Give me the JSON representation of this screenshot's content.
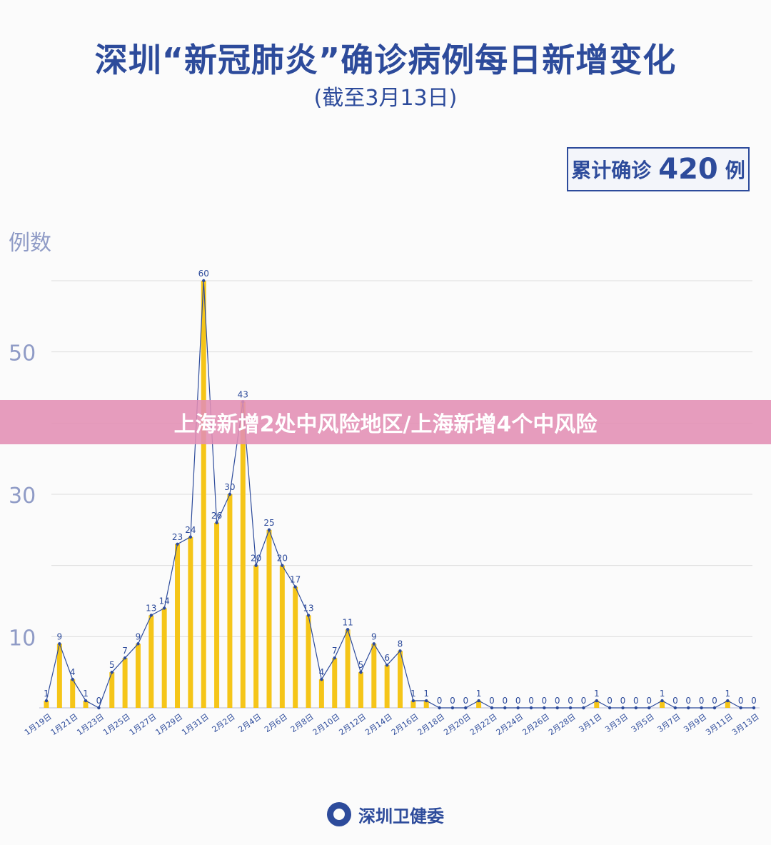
{
  "header": {
    "title": "深圳“新冠肺炎”确诊病例每日新增变化",
    "subtitle": "(截至3月13日)"
  },
  "total": {
    "label": "累计确诊",
    "value": "420",
    "unit": "例"
  },
  "banner": {
    "text": "上海新增2处中风险地区/上海新增4个中风险"
  },
  "footer": {
    "org": "深圳卫健委",
    "seal_icon": "health-commission-seal-icon"
  },
  "colors": {
    "bar": "#f5c518",
    "line": "#2d4b9b",
    "axis_text": "#8f9bc6",
    "title": "#2d4b9b",
    "banner": "#e28eb4"
  },
  "chart_data": {
    "type": "bar",
    "ylabel": "例数",
    "xlabel": "",
    "ylim": [
      0,
      60
    ],
    "yticks": [
      10,
      30,
      50
    ],
    "grid": true,
    "categories": [
      "1月19日",
      "1月20日",
      "1月21日",
      "1月22日",
      "1月23日",
      "1月24日",
      "1月25日",
      "1月26日",
      "1月27日",
      "1月28日",
      "1月29日",
      "1月30日",
      "1月31日",
      "2月1日",
      "2月2日",
      "2月3日",
      "2月4日",
      "2月5日",
      "2月6日",
      "2月7日",
      "2月8日",
      "2月9日",
      "2月10日",
      "2月11日",
      "2月12日",
      "2月13日",
      "2月14日",
      "2月15日",
      "2月16日",
      "2月17日",
      "2月18日",
      "2月19日",
      "2月20日",
      "2月21日",
      "2月22日",
      "2月23日",
      "2月24日",
      "2月25日",
      "2月26日",
      "2月27日",
      "2月28日",
      "2月29日",
      "3月1日",
      "3月2日",
      "3月3日",
      "3月4日",
      "3月5日",
      "3月6日",
      "3月7日",
      "3月8日",
      "3月9日",
      "3月10日",
      "3月11日",
      "3月12日",
      "3月13日"
    ],
    "tick_labels_shown": [
      "1月19日",
      "1月21日",
      "1月23日",
      "1月25日",
      "1月27日",
      "1月29日",
      "1月31日",
      "2月2日",
      "2月4日",
      "2月6日",
      "2月8日",
      "2月10日",
      "2月12日",
      "2月14日",
      "2月16日",
      "2月18日",
      "2月20日",
      "2月22日",
      "2月24日",
      "2月26日",
      "2月28日",
      "3月1日",
      "3月3日",
      "3月5日",
      "3月7日",
      "3月9日",
      "3月11日",
      "3月13日"
    ],
    "values": [
      1,
      9,
      4,
      1,
      0,
      5,
      7,
      9,
      13,
      14,
      23,
      24,
      60,
      26,
      30,
      43,
      20,
      25,
      20,
      17,
      13,
      4,
      7,
      11,
      5,
      9,
      6,
      8,
      1,
      1,
      0,
      0,
      0,
      1,
      0,
      0,
      0,
      0,
      0,
      0,
      0,
      0,
      1,
      0,
      0,
      0,
      0,
      1,
      0,
      0,
      0,
      0,
      1,
      0,
      0
    ]
  }
}
